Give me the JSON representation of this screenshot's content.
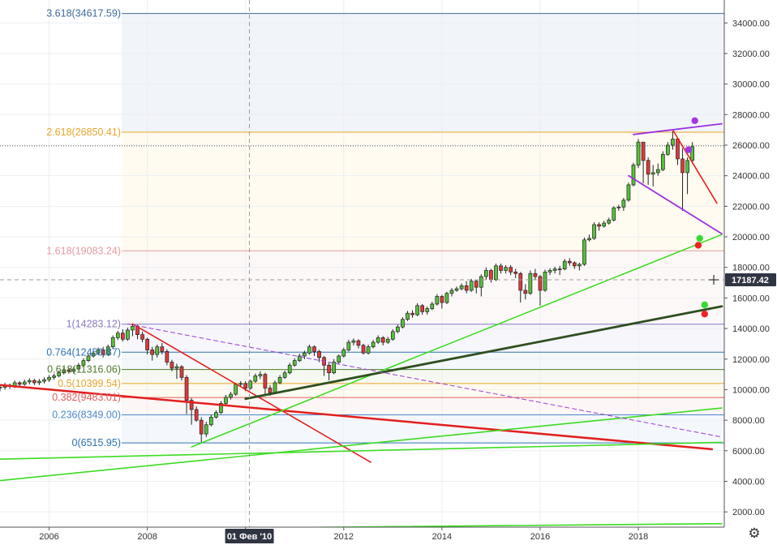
{
  "chart_data": {
    "type": "candlestick",
    "price_axis": {
      "min": 1000,
      "max": 35500,
      "ticks": [
        "2000.00",
        "4000.00",
        "6000.00",
        "8000.00",
        "10000.00",
        "12000.00",
        "14000.00",
        "16000.00",
        "18000.00",
        "20000.00",
        "22000.00",
        "24000.00",
        "26000.00",
        "28000.00",
        "30000.00",
        "32000.00",
        "34000.00"
      ],
      "current_price_label": "17187.42",
      "current_price": 17187.42,
      "last_close_level": 25950
    },
    "time_axis": {
      "min": 2005.0,
      "max": 2019.75,
      "ticks": [
        {
          "label": "2006",
          "t": 2006.0
        },
        {
          "label": "2008",
          "t": 2008.0
        },
        {
          "label": "2010",
          "t": 2010.0
        },
        {
          "label": "2012",
          "t": 2012.0
        },
        {
          "label": "2014",
          "t": 2014.0
        },
        {
          "label": "2016",
          "t": 2016.0
        },
        {
          "label": "2018",
          "t": 2018.0
        }
      ],
      "crosshair_label": "01 Фев '10",
      "crosshair_t": 2010.08
    },
    "fib_levels": [
      {
        "label": "3.618(34617.59)",
        "price": 34617.59,
        "color": "#3f6a9a",
        "fill": "#f1f4f9"
      },
      {
        "label": "2.618(26850.41)",
        "price": 26850.41,
        "color": "#e6a52a",
        "fill": "#fffbf0"
      },
      {
        "label": "1.618(19083.24)",
        "price": 19083.24,
        "color": "#e7999f",
        "fill": "#fdf8f8"
      },
      {
        "label": "1(14283.12)",
        "price": 14283.12,
        "color": "#8877c5",
        "fill": "#f6f6fb"
      },
      {
        "label": "0.764(12450.87)",
        "price": 12450.87,
        "color": "#2f72b0",
        "fill": "#f4f8fb"
      },
      {
        "label": "0.618(11316.06)",
        "price": 11316.06,
        "color": "#4e7a2a",
        "fill": "#f6f9f1"
      },
      {
        "label": "0.5(10399.54)",
        "price": 10399.54,
        "color": "#e6a52a",
        "fill": "#fffbf0"
      },
      {
        "label": "0.382(9483.01)",
        "price": 9483.01,
        "color": "#e05c5c",
        "fill": "#fdf6f6"
      },
      {
        "label": "0.236(8349.00)",
        "price": 8349.0,
        "color": "#4a86c8",
        "fill": "#f4f8fc"
      },
      {
        "label": "0(6515.95)",
        "price": 6515.95,
        "color": "#2f72b0",
        "fill": "#f5f8fc"
      }
    ],
    "trendlines": [
      {
        "color": "#e31e1e",
        "width": 2.5,
        "dash": "",
        "from": [
          2005.0,
          10300
        ],
        "to": [
          2019.5,
          6100
        ]
      },
      {
        "color": "#e31e1e",
        "width": 1.6,
        "dash": "",
        "from": [
          2007.7,
          14300
        ],
        "to": [
          2012.55,
          5250
        ]
      },
      {
        "color": "#e31e1e",
        "width": 1.6,
        "dash": "",
        "from": [
          2018.7,
          27000
        ],
        "to": [
          2019.6,
          22200
        ]
      },
      {
        "color": "#3cdc20",
        "width": 1.6,
        "dash": "",
        "from": [
          2005.0,
          5450
        ],
        "to": [
          2019.7,
          6550
        ]
      },
      {
        "color": "#3cdc20",
        "width": 1.6,
        "dash": "",
        "from": [
          2005.0,
          4050
        ],
        "to": [
          2019.7,
          8800
        ]
      },
      {
        "color": "#3cdc20",
        "width": 1.6,
        "dash": "",
        "from": [
          2005.0,
          800
        ],
        "to": [
          2019.7,
          1230
        ]
      },
      {
        "color": "#3cdc20",
        "width": 1.6,
        "dash": "",
        "from": [
          2008.9,
          6250
        ],
        "to": [
          2019.7,
          20150
        ]
      },
      {
        "color": "#2f4f1f",
        "width": 2.8,
        "dash": "",
        "from": [
          2010.0,
          9400
        ],
        "to": [
          2019.7,
          15450
        ]
      },
      {
        "color": "#a64ad8",
        "width": 1.1,
        "dash": "5,4",
        "from": [
          2007.6,
          14300
        ],
        "to": [
          2019.7,
          6900
        ]
      },
      {
        "color": "#9b30e0",
        "width": 1.8,
        "dash": "",
        "from": [
          2017.9,
          26700
        ],
        "to": [
          2019.7,
          27400
        ]
      },
      {
        "color": "#9b30e0",
        "width": 1.8,
        "dash": "",
        "from": [
          2017.8,
          24000
        ],
        "to": [
          2019.7,
          20200
        ]
      }
    ],
    "markers": [
      {
        "color": "#a335e6",
        "t": 2019.15,
        "price": 27600
      },
      {
        "color": "#a335e6",
        "t": 2019.02,
        "price": 25700
      },
      {
        "color": "#33dd33",
        "t": 2019.25,
        "price": 19900
      },
      {
        "color": "#ee2222",
        "t": 2019.22,
        "price": 19450
      },
      {
        "color": "#33dd33",
        "t": 2019.35,
        "price": 15550
      },
      {
        "color": "#ee2222",
        "t": 2019.35,
        "price": 14950
      }
    ],
    "candles": [
      [
        2005.0,
        10100,
        10150,
        9900,
        10350
      ],
      [
        2005.1,
        10150,
        10300,
        10000,
        10450
      ],
      [
        2005.2,
        10300,
        10200,
        10050,
        10400
      ],
      [
        2005.3,
        10200,
        10450,
        10100,
        10600
      ],
      [
        2005.4,
        10450,
        10350,
        10200,
        10550
      ],
      [
        2005.5,
        10350,
        10500,
        10250,
        10650
      ],
      [
        2005.6,
        10500,
        10600,
        10350,
        10750
      ],
      [
        2005.7,
        10600,
        10450,
        10300,
        10700
      ],
      [
        2005.8,
        10450,
        10550,
        10300,
        10700
      ],
      [
        2005.9,
        10550,
        10650,
        10400,
        10800
      ],
      [
        2006.0,
        10650,
        10800,
        10500,
        10950
      ],
      [
        2006.1,
        10800,
        10900,
        10650,
        11050
      ],
      [
        2006.2,
        10900,
        11100,
        10800,
        11250
      ],
      [
        2006.3,
        11100,
        11300,
        11000,
        11450
      ],
      [
        2006.4,
        11300,
        11200,
        11050,
        11450
      ],
      [
        2006.5,
        11200,
        11350,
        11050,
        11500
      ],
      [
        2006.6,
        11350,
        11600,
        11250,
        11750
      ],
      [
        2006.7,
        11600,
        11900,
        11500,
        12050
      ],
      [
        2006.8,
        11900,
        12200,
        11800,
        12350
      ],
      [
        2006.9,
        12200,
        12400,
        12100,
        12550
      ],
      [
        2007.0,
        12400,
        12600,
        12250,
        12750
      ],
      [
        2007.1,
        12600,
        12300,
        12100,
        12800
      ],
      [
        2007.2,
        12300,
        12800,
        12200,
        12950
      ],
      [
        2007.3,
        12800,
        13400,
        12700,
        13550
      ],
      [
        2007.4,
        13400,
        13700,
        13250,
        13850
      ],
      [
        2007.5,
        13700,
        13300,
        13150,
        13950
      ],
      [
        2007.6,
        13300,
        13900,
        13200,
        14050
      ],
      [
        2007.7,
        13900,
        14150,
        13500,
        14300
      ],
      [
        2007.8,
        14150,
        13600,
        13300,
        14250
      ],
      [
        2007.9,
        13600,
        13300,
        13100,
        13800
      ],
      [
        2008.0,
        13300,
        12600,
        12300,
        13400
      ],
      [
        2008.1,
        12600,
        12300,
        11900,
        12800
      ],
      [
        2008.2,
        12300,
        12800,
        12100,
        12950
      ],
      [
        2008.3,
        12800,
        12500,
        12300,
        13050
      ],
      [
        2008.4,
        12500,
        11800,
        11600,
        12650
      ],
      [
        2008.5,
        11800,
        11400,
        11200,
        11950
      ],
      [
        2008.6,
        11400,
        11500,
        10700,
        11700
      ],
      [
        2008.7,
        11500,
        10800,
        10600,
        11600
      ],
      [
        2008.8,
        10800,
        9300,
        8400,
        10950
      ],
      [
        2008.9,
        9300,
        8700,
        7700,
        9450
      ],
      [
        2009.0,
        8700,
        8000,
        7900,
        8900
      ],
      [
        2009.1,
        8000,
        7100,
        6500,
        8200
      ],
      [
        2009.2,
        7100,
        7700,
        6900,
        7900
      ],
      [
        2009.3,
        7700,
        8200,
        7600,
        8350
      ],
      [
        2009.4,
        8200,
        8500,
        8100,
        8650
      ],
      [
        2009.5,
        8500,
        9100,
        8400,
        9250
      ],
      [
        2009.6,
        9100,
        9500,
        9000,
        9650
      ],
      [
        2009.7,
        9500,
        9700,
        9350,
        9850
      ],
      [
        2009.8,
        9700,
        10350,
        9600,
        10450
      ],
      [
        2009.9,
        10350,
        10400,
        10200,
        10550
      ],
      [
        2010.0,
        10400,
        10100,
        9900,
        10550
      ],
      [
        2010.1,
        10100,
        10550,
        10000,
        10650
      ],
      [
        2010.2,
        10550,
        10900,
        10450,
        11050
      ],
      [
        2010.3,
        10900,
        11000,
        10700,
        11200
      ],
      [
        2010.4,
        11000,
        10100,
        9700,
        11100
      ],
      [
        2010.5,
        10100,
        9800,
        9600,
        10300
      ],
      [
        2010.6,
        9800,
        10450,
        9700,
        10600
      ],
      [
        2010.7,
        10450,
        10800,
        10350,
        10950
      ],
      [
        2010.8,
        10800,
        11100,
        10700,
        11250
      ],
      [
        2010.9,
        11100,
        11600,
        11000,
        11750
      ],
      [
        2011.0,
        11600,
        11900,
        11500,
        12050
      ],
      [
        2011.1,
        11900,
        12200,
        11800,
        12350
      ],
      [
        2011.2,
        12200,
        12400,
        12000,
        12550
      ],
      [
        2011.3,
        12400,
        12800,
        12300,
        12950
      ],
      [
        2011.4,
        12800,
        12500,
        12200,
        12900
      ],
      [
        2011.5,
        12500,
        12100,
        11800,
        12600
      ],
      [
        2011.6,
        12100,
        11600,
        10900,
        12200
      ],
      [
        2011.7,
        11600,
        11100,
        10600,
        11750
      ],
      [
        2011.8,
        11100,
        11800,
        11000,
        12000
      ],
      [
        2011.9,
        11800,
        12200,
        11700,
        12300
      ],
      [
        2012.0,
        12200,
        12600,
        12100,
        12750
      ],
      [
        2012.1,
        12600,
        13100,
        12500,
        13250
      ],
      [
        2012.2,
        13100,
        13200,
        12900,
        13350
      ],
      [
        2012.3,
        13200,
        12900,
        12700,
        13300
      ],
      [
        2012.4,
        12900,
        12400,
        12300,
        13000
      ],
      [
        2012.5,
        12400,
        12800,
        12300,
        12950
      ],
      [
        2012.6,
        12800,
        13100,
        12700,
        13250
      ],
      [
        2012.7,
        13100,
        13400,
        13000,
        13550
      ],
      [
        2012.8,
        13400,
        13100,
        12900,
        13500
      ],
      [
        2012.9,
        13100,
        13300,
        13000,
        13450
      ],
      [
        2013.0,
        13300,
        13800,
        13200,
        13950
      ],
      [
        2013.1,
        13800,
        14100,
        13700,
        14250
      ],
      [
        2013.2,
        14100,
        14600,
        14000,
        14750
      ],
      [
        2013.3,
        14600,
        15000,
        14500,
        15150
      ],
      [
        2013.4,
        15000,
        14900,
        14700,
        15200
      ],
      [
        2013.5,
        14900,
        15500,
        14800,
        15650
      ],
      [
        2013.6,
        15500,
        15100,
        14900,
        15600
      ],
      [
        2013.7,
        15100,
        15300,
        14900,
        15450
      ],
      [
        2013.8,
        15300,
        15600,
        15200,
        15750
      ],
      [
        2013.9,
        15600,
        16100,
        15500,
        16250
      ],
      [
        2014.0,
        16100,
        15700,
        15300,
        16200
      ],
      [
        2014.1,
        15700,
        16300,
        15600,
        16400
      ],
      [
        2014.2,
        16300,
        16500,
        16100,
        16650
      ],
      [
        2014.3,
        16500,
        16600,
        16400,
        16750
      ],
      [
        2014.4,
        16600,
        16800,
        16500,
        16950
      ],
      [
        2014.5,
        16800,
        16500,
        16300,
        17100
      ],
      [
        2014.6,
        16500,
        17100,
        16400,
        17250
      ],
      [
        2014.7,
        17100,
        16700,
        16300,
        17200
      ],
      [
        2014.8,
        16700,
        17400,
        16100,
        17550
      ],
      [
        2014.9,
        17400,
        17800,
        17200,
        18000
      ],
      [
        2015.0,
        17800,
        17200,
        17000,
        17900
      ],
      [
        2015.1,
        17200,
        18100,
        17100,
        18250
      ],
      [
        2015.2,
        18100,
        17800,
        17600,
        18250
      ],
      [
        2015.3,
        17800,
        18000,
        17600,
        18150
      ],
      [
        2015.4,
        18000,
        17700,
        17500,
        18150
      ],
      [
        2015.5,
        17700,
        17600,
        17300,
        17900
      ],
      [
        2015.6,
        17600,
        16500,
        15700,
        17700
      ],
      [
        2015.7,
        16500,
        16300,
        15900,
        16900
      ],
      [
        2015.8,
        16300,
        17600,
        16200,
        17800
      ],
      [
        2015.9,
        17600,
        17400,
        17200,
        17900
      ],
      [
        2016.0,
        17400,
        16500,
        15500,
        17500
      ],
      [
        2016.1,
        16500,
        17700,
        16400,
        17850
      ],
      [
        2016.2,
        17700,
        17800,
        17500,
        17950
      ],
      [
        2016.3,
        17800,
        17900,
        17600,
        18050
      ],
      [
        2016.4,
        17900,
        17900,
        17500,
        18100
      ],
      [
        2016.5,
        17900,
        18400,
        17800,
        18550
      ],
      [
        2016.6,
        18400,
        18300,
        18100,
        18600
      ],
      [
        2016.7,
        18300,
        18100,
        17900,
        18400
      ],
      [
        2016.8,
        18100,
        18200,
        17800,
        18300
      ],
      [
        2016.9,
        18200,
        19800,
        18100,
        19950
      ],
      [
        2017.0,
        19800,
        19900,
        19700,
        20150
      ],
      [
        2017.1,
        19900,
        20800,
        19800,
        20950
      ],
      [
        2017.2,
        20800,
        20700,
        20400,
        20950
      ],
      [
        2017.3,
        20700,
        20900,
        20600,
        21050
      ],
      [
        2017.4,
        20900,
        21100,
        20800,
        21250
      ],
      [
        2017.5,
        21100,
        21900,
        21000,
        22000
      ],
      [
        2017.6,
        21900,
        21950,
        21700,
        22100
      ],
      [
        2017.7,
        21950,
        22400,
        21700,
        22550
      ],
      [
        2017.8,
        22400,
        23400,
        22300,
        23550
      ],
      [
        2017.9,
        23400,
        24700,
        23300,
        24850
      ],
      [
        2018.0,
        24700,
        26200,
        24500,
        26400
      ],
      [
        2018.1,
        26200,
        25000,
        23500,
        26100
      ],
      [
        2018.2,
        25000,
        24100,
        23400,
        25200
      ],
      [
        2018.3,
        24100,
        24200,
        23300,
        24700
      ],
      [
        2018.4,
        24200,
        24400,
        24000,
        24800
      ],
      [
        2018.5,
        24400,
        25400,
        24300,
        25600
      ],
      [
        2018.6,
        25400,
        26000,
        25300,
        26200
      ],
      [
        2018.7,
        26000,
        26400,
        25700,
        26900
      ],
      [
        2018.8,
        26400,
        25100,
        24700,
        26500
      ],
      [
        2018.9,
        25100,
        24200,
        21700,
        25800
      ],
      [
        2019.0,
        24200,
        25000,
        22800,
        25200
      ],
      [
        2019.1,
        25000,
        25900,
        24800,
        26200
      ]
    ]
  },
  "ui": {
    "settings_icon": "gear-icon"
  }
}
